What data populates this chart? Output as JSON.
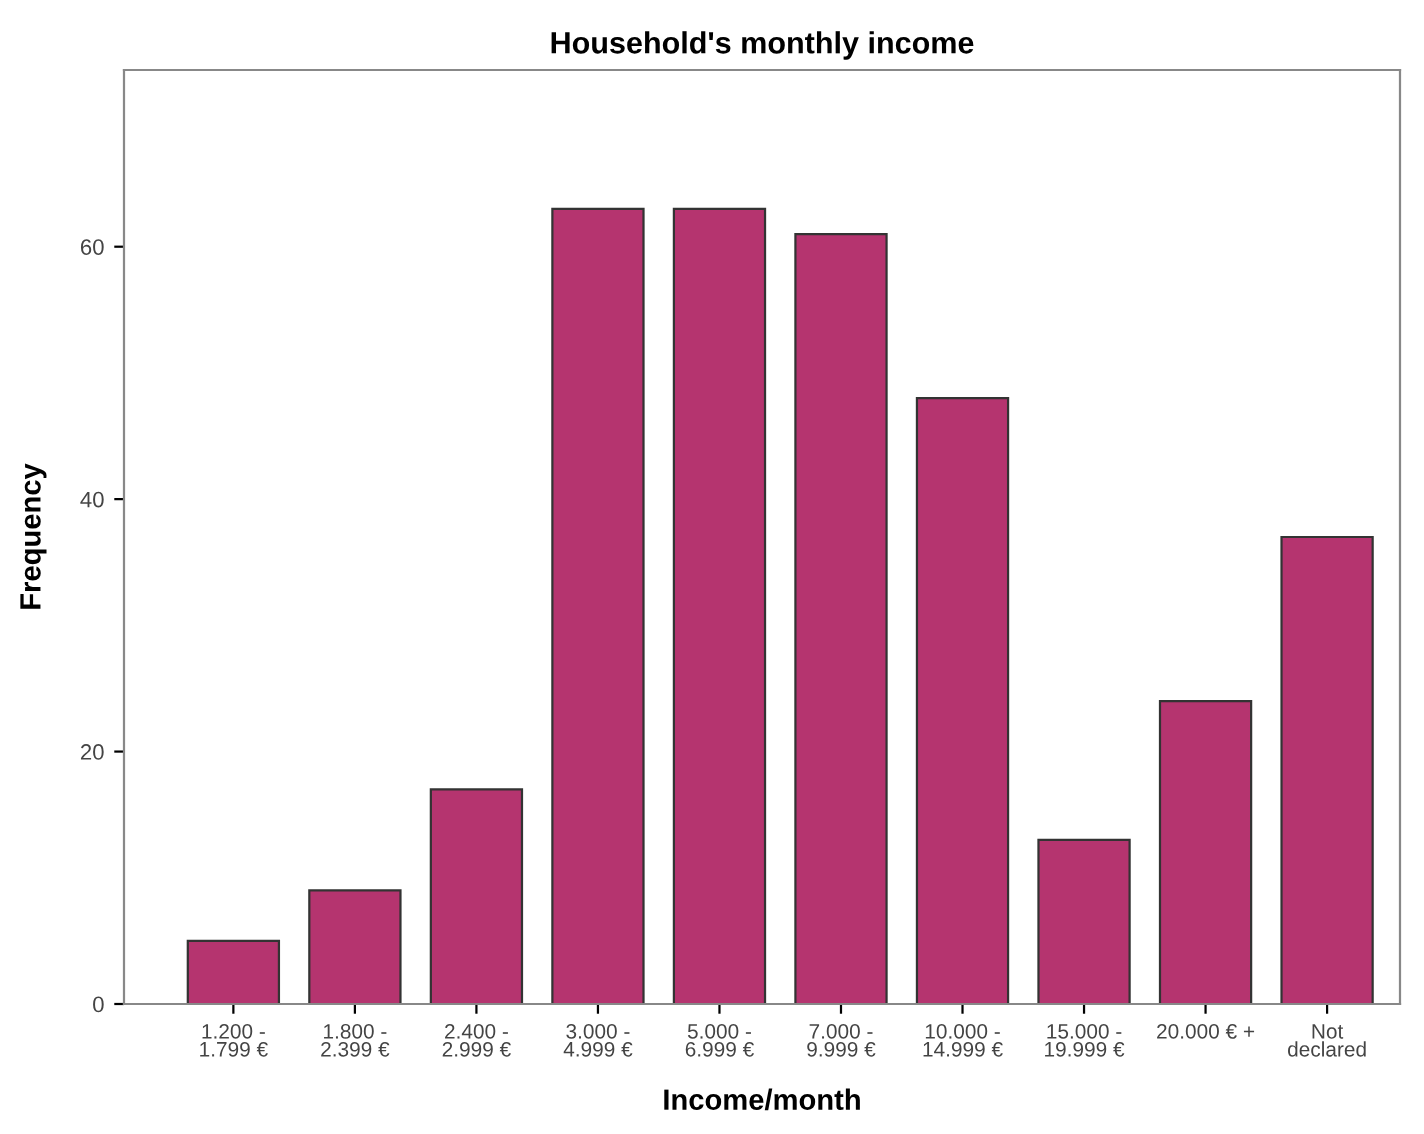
{
  "chart_data": {
    "type": "bar",
    "title": "Household's monthly income",
    "xlabel": "Income/month",
    "ylabel": "Frequency",
    "categories": [
      "1.200 -\n1.799 €",
      "1.800 -\n2.399 €",
      "2.400 -\n2.999 €",
      "3.000 -\n4.999 €",
      "5.000 -\n6.999 €",
      "7.000 -\n9.999 €",
      "10.000 -\n14.999 €",
      "15.000 -\n19.999 €",
      "20.000 € +",
      "Not\ndeclared"
    ],
    "values": [
      5,
      9,
      17,
      63,
      63,
      61,
      48,
      13,
      24,
      37
    ],
    "color": "#b5346f",
    "ylim": [
      0,
      74
    ],
    "yticks": [
      0,
      20,
      40,
      60
    ],
    "grid": false,
    "legend": false
  }
}
